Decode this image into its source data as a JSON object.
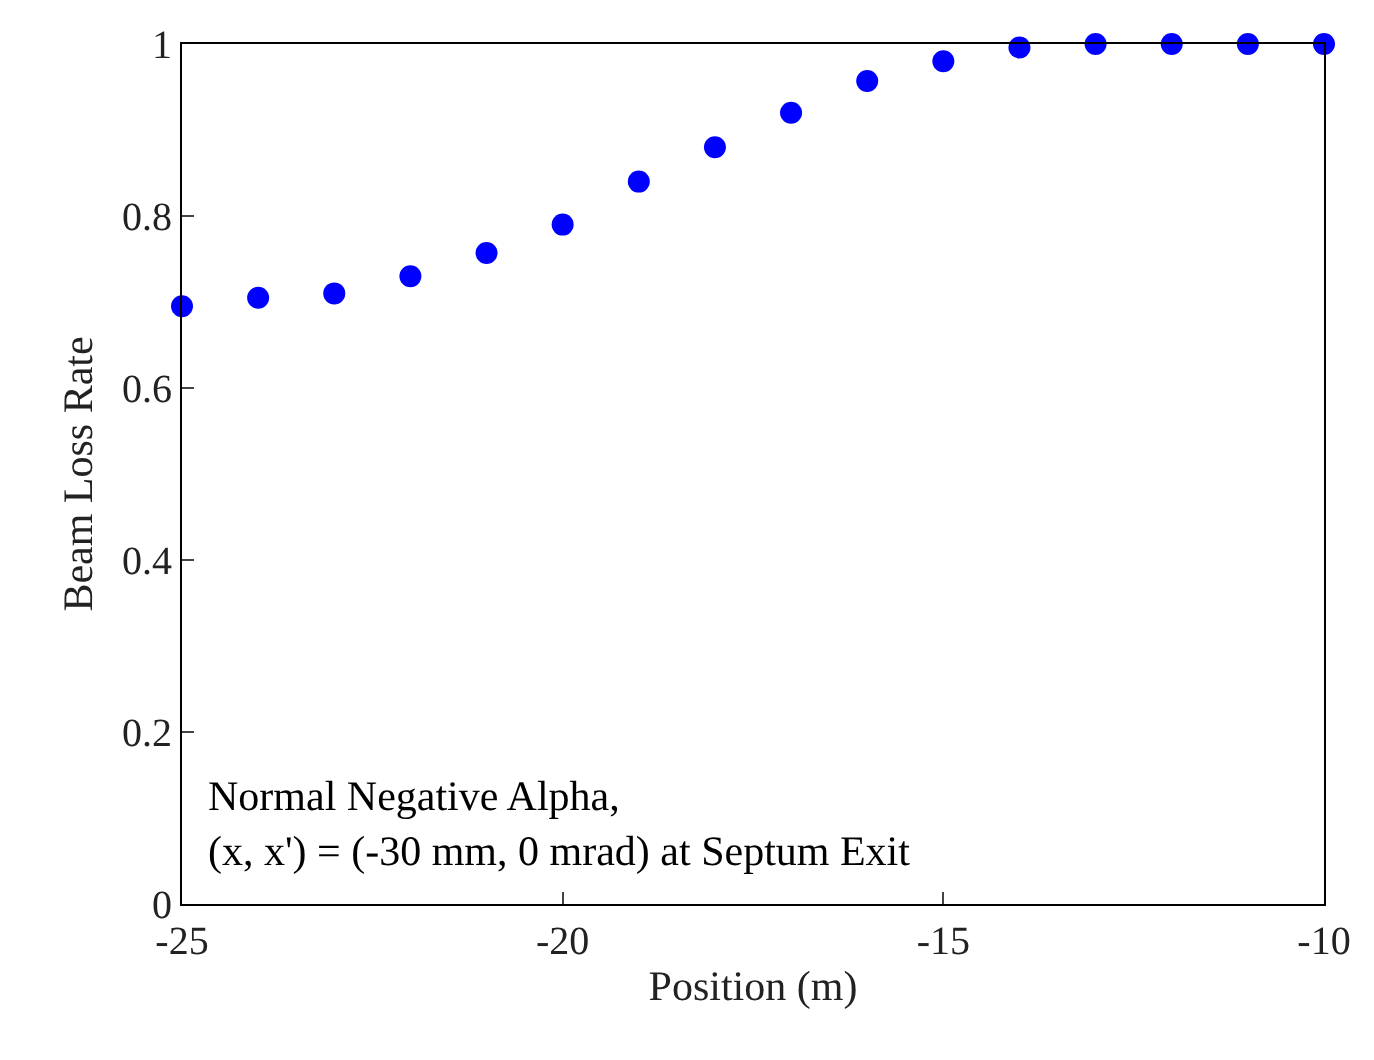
{
  "chart_data": {
    "type": "scatter",
    "xlabel": "Position (m)",
    "ylabel": "Beam Loss Rate",
    "x": [
      -25,
      -24,
      -23,
      -22,
      -21,
      -20,
      -19,
      -18,
      -17,
      -16,
      -15,
      -14,
      -13,
      -12,
      -11,
      -10
    ],
    "series": [
      {
        "color": "#0000ff",
        "values": [
          0.695,
          0.705,
          0.71,
          0.73,
          0.757,
          0.79,
          0.84,
          0.88,
          0.92,
          0.957,
          0.98,
          0.996,
          1,
          1,
          1,
          1
        ]
      }
    ],
    "xlim": [
      -25,
      -10
    ],
    "xticks": [
      -25,
      -20,
      -15,
      -10
    ],
    "ylim": [
      0,
      1
    ],
    "yticks": [
      0,
      0.2,
      0.4,
      0.6,
      0.8,
      1
    ],
    "legend": false,
    "marker": "circle",
    "annotations": [
      "Normal Negative Alpha,\n(x, x') = (-30 mm, 0 mrad) at Septum Exit"
    ]
  }
}
